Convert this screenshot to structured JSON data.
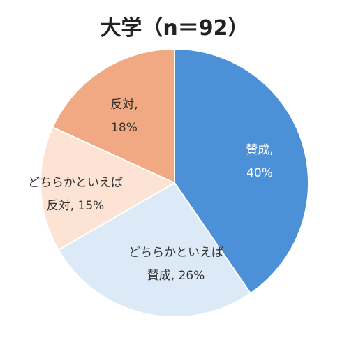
{
  "chart_data": {
    "type": "pie",
    "title": "大学（n＝92）",
    "start": "12 o'clock, clockwise",
    "slices": [
      {
        "label_line1": "賛成,",
        "label_line2": "40%",
        "value": 40,
        "color": "#4c91d8",
        "text_color": "#ffffff"
      },
      {
        "label_line1": "どちらかといえば",
        "label_line2": "賛成, 26%",
        "value": 26,
        "color": "#dce9f6",
        "text_color": "#333333"
      },
      {
        "label_line1": "どちらかといえば",
        "label_line2": "反対, 15%",
        "value": 15,
        "color": "#fce3d3",
        "text_color": "#333333"
      },
      {
        "label_line1": "反対,",
        "label_line2": "18%",
        "value": 18,
        "color": "#f0a982",
        "text_color": "#333333"
      }
    ]
  }
}
